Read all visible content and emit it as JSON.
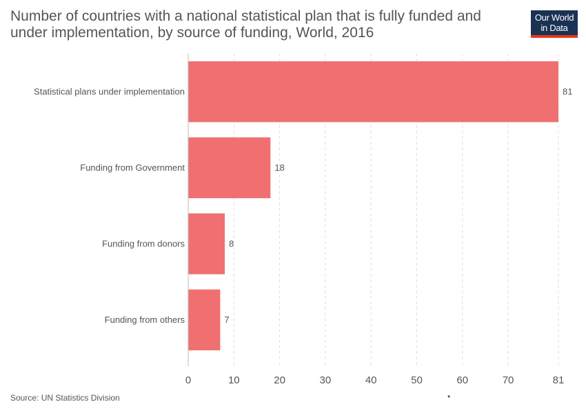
{
  "header": {
    "title": "Number of countries with a national statistical plan that is fully funded and under implementation, by source of funding, World, 2016",
    "logo_line1": "Our World",
    "logo_line2": "in Data"
  },
  "footer": {
    "source": "Source: UN Statistics Division",
    "dot": "•"
  },
  "colors": {
    "bar": "#f07072",
    "text": "#555555",
    "grid": "#dddddd",
    "axis": "#bbbbbb",
    "logo_bg": "#1a3254",
    "logo_accent": "#e63912"
  },
  "chart_data": {
    "type": "bar",
    "orientation": "horizontal",
    "title": "Number of countries with a national statistical plan that is fully funded and under implementation, by source of funding, World, 2016",
    "categories": [
      "Statistical plans under implementation",
      "Funding from Government",
      "Funding from donors",
      "Funding from others"
    ],
    "values": [
      81,
      18,
      8,
      7
    ],
    "xlim": [
      0,
      81
    ],
    "xticks": [
      0,
      10,
      20,
      30,
      40,
      50,
      60,
      70,
      81
    ],
    "xlabel": "",
    "ylabel": "",
    "grid": true
  }
}
